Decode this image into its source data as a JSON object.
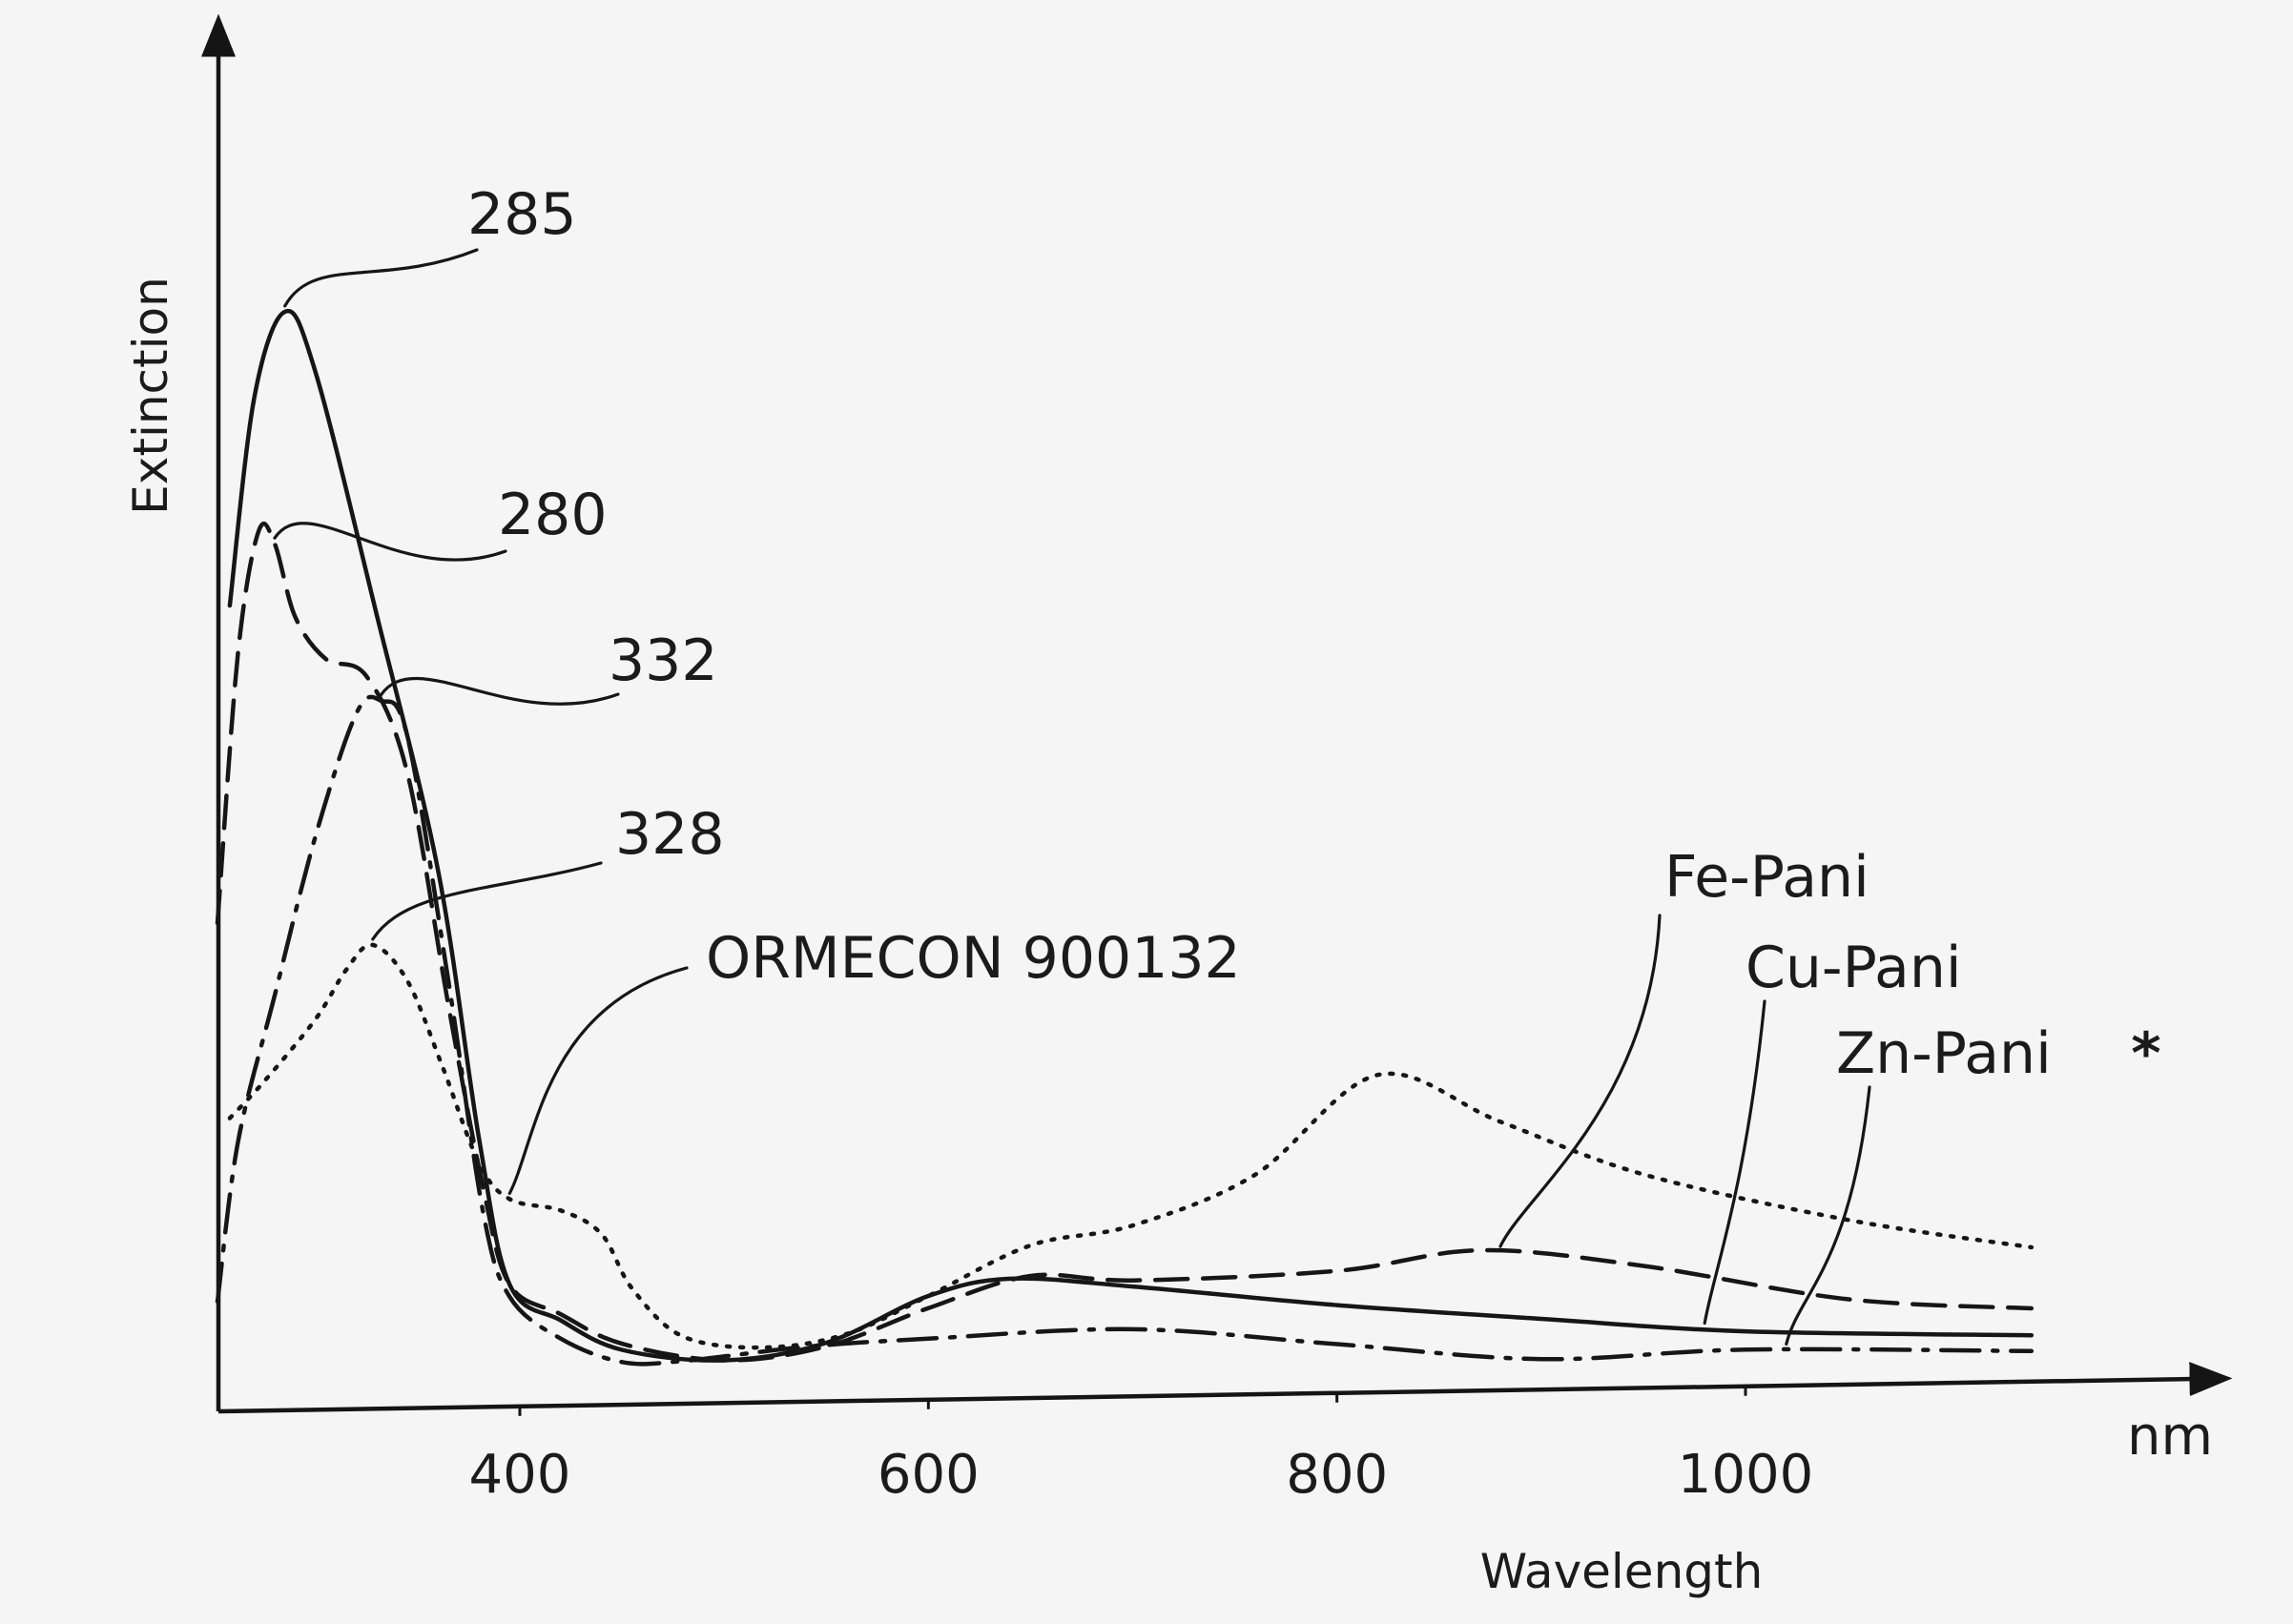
{
  "chart_data": {
    "type": "line",
    "title": "",
    "xlabel": "Wavelength",
    "xunit": "nm",
    "ylabel": "Extinction",
    "xlim": [
      240,
      1140
    ],
    "ylim": [
      0,
      1.0
    ],
    "x_ticks": [
      400,
      600,
      800,
      1000
    ],
    "y_ticks_shown": false,
    "grid": false,
    "legend": "none",
    "annotations": [
      {
        "text": "285",
        "x": 285
      },
      {
        "text": "280",
        "x": 280
      },
      {
        "text": "332",
        "x": 332
      },
      {
        "text": "328",
        "x": 328
      },
      {
        "text": "ORMECON 900132",
        "x": 400
      },
      {
        "text": "Fe-Pani",
        "x": 870
      },
      {
        "text": "Cu-Pani",
        "x": 980
      },
      {
        "text": "Zn-Pani",
        "x": 1020
      },
      {
        "text": "*",
        "x": 1140
      }
    ],
    "series": [
      {
        "name": "Cu-Pani",
        "style": "solid",
        "peaks": [
          285
        ],
        "x": [
          258,
          270,
          285,
          300,
          330,
          360,
          380,
          395,
          420,
          450,
          500,
          550,
          600,
          640,
          700,
          800,
          900,
          1000,
          1140
        ],
        "y": [
          0.66,
          0.83,
          0.9,
          0.85,
          0.65,
          0.44,
          0.22,
          0.1,
          0.07,
          0.045,
          0.035,
          0.048,
          0.085,
          0.098,
          0.09,
          0.072,
          0.058,
          0.045,
          0.038
        ]
      },
      {
        "name": "Fe-Pani",
        "style": "dashed",
        "peaks": [
          280
        ],
        "x": [
          252,
          262,
          272,
          280,
          290,
          305,
          325,
          345,
          365,
          382,
          395,
          420,
          450,
          500,
          550,
          600,
          650,
          700,
          800,
          870,
          950,
          1050,
          1140
        ],
        "y": [
          0.4,
          0.62,
          0.72,
          0.71,
          0.65,
          0.615,
          0.6,
          0.52,
          0.33,
          0.18,
          0.1,
          0.075,
          0.05,
          0.035,
          0.045,
          0.075,
          0.1,
          0.095,
          0.1,
          0.115,
          0.1,
          0.07,
          0.06
        ]
      },
      {
        "name": "Zn-Pani",
        "style": "dash-dot",
        "peaks": [
          332
        ],
        "x": [
          252,
          262,
          280,
          300,
          320,
          332,
          345,
          365,
          382,
          395,
          420,
          450,
          480,
          540,
          600,
          700,
          800,
          900,
          1000,
          1140
        ],
        "y": [
          0.09,
          0.22,
          0.34,
          0.47,
          0.57,
          0.58,
          0.55,
          0.35,
          0.16,
          0.09,
          0.055,
          0.035,
          0.035,
          0.045,
          0.05,
          0.055,
          0.04,
          0.025,
          0.03,
          0.025
        ]
      },
      {
        "name": "ORMECON 900132",
        "style": "dotted",
        "peaks": [
          328,
          820
        ],
        "x": [
          258,
          275,
          300,
          315,
          328,
          345,
          362,
          380,
          395,
          420,
          440,
          455,
          480,
          520,
          560,
          600,
          650,
          700,
          760,
          820,
          880,
          950,
          1050,
          1140
        ],
        "y": [
          0.24,
          0.27,
          0.32,
          0.36,
          0.38,
          0.35,
          0.28,
          0.2,
          0.17,
          0.16,
          0.14,
          0.095,
          0.055,
          0.045,
          0.055,
          0.085,
          0.125,
          0.14,
          0.18,
          0.26,
          0.22,
          0.175,
          0.135,
          0.11
        ]
      }
    ]
  }
}
